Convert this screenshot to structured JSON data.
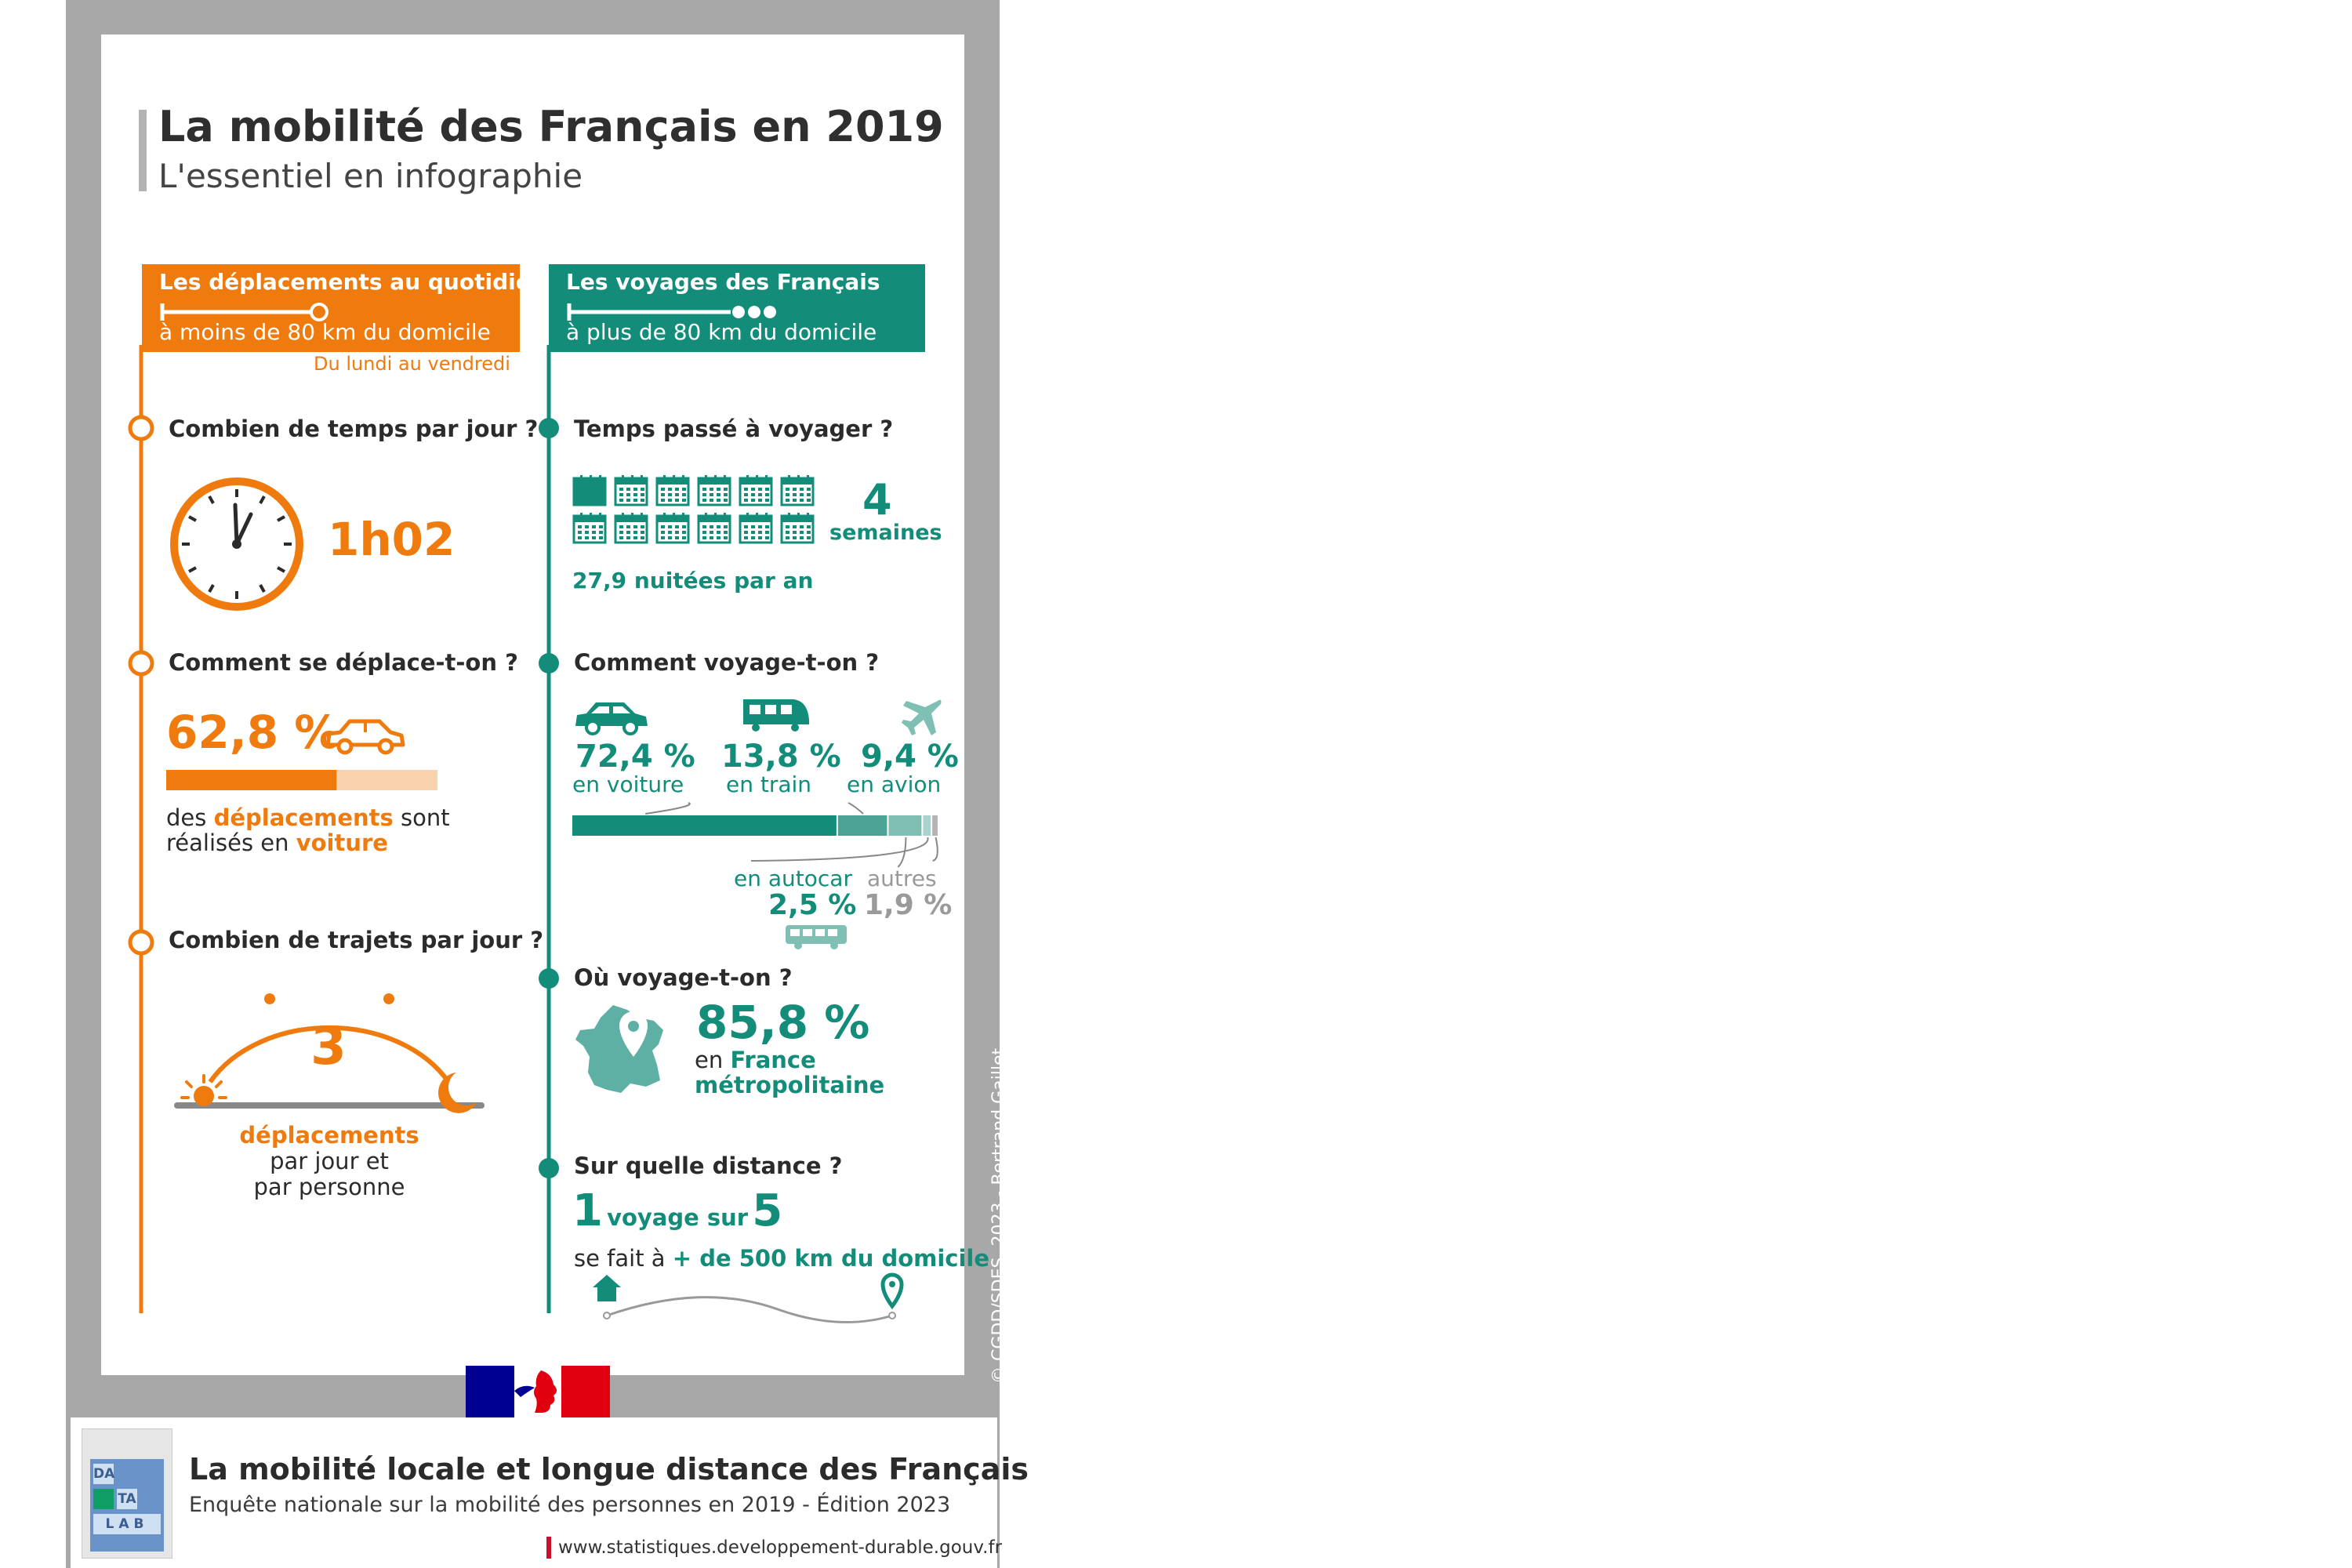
{
  "header": {
    "title": "La mobilité des Français en 2019",
    "subtitle": "L'essentiel en infographie"
  },
  "left": {
    "header_title": "Les déplacements au quotidien",
    "header_sub": "à moins de 80 km du domicile",
    "note": "Du lundi au vendredi",
    "q1": {
      "label": "Combien de temps par jour ?",
      "value": "1h02",
      "icon": "clock-icon"
    },
    "q2": {
      "label": "Comment se déplace-t-on ?",
      "value": "62,8 %",
      "bar_fraction": 0.628,
      "text_pre": "des ",
      "text_b1": "déplacements",
      "text_mid": " sont",
      "text_line2_pre": "réalisés en ",
      "text_b2": "voiture",
      "icon": "car-icon"
    },
    "q3": {
      "label": "Combien de trajets par jour ?",
      "value": "3",
      "line1": "déplacements",
      "line2": "par jour et",
      "line3": "par personne",
      "icons": [
        "sun-icon",
        "moon-icon"
      ]
    }
  },
  "right": {
    "header_title": "Les voyages des Français",
    "header_sub": "à plus de 80 km du domicile",
    "q1": {
      "label": "Temps passé à voyager ?",
      "value": "4",
      "unit": "semaines",
      "nights": "27,9 nuitées par an",
      "icon": "calendar-icon"
    },
    "q2": {
      "label": "Comment voyage-t-on ?",
      "modes": [
        {
          "value": "72,4 %",
          "label": "en voiture",
          "share": 72.4,
          "icon": "car-icon",
          "color": "#138c7a"
        },
        {
          "value": "13,8 %",
          "label": "en train",
          "share": 13.8,
          "icon": "train-icon",
          "color": "#4aa395"
        },
        {
          "value": "9,4 %",
          "label": "en avion",
          "share": 9.4,
          "icon": "plane-icon",
          "color": "#7fbfb4"
        },
        {
          "value": "2,5 %",
          "label": "en autocar",
          "share": 2.5,
          "icon": "bus-icon",
          "color": "#a9d3cc"
        },
        {
          "value": "1,9 %",
          "label": "autres",
          "share": 1.9,
          "color": "#b5b5b5"
        }
      ]
    },
    "q3": {
      "label": "Où voyage-t-on ?",
      "value": "85,8 %",
      "text_pre": "en ",
      "text_b1": "France",
      "text_b2": "métropolitaine",
      "icon": "france-map-icon"
    },
    "q4": {
      "label": "Sur quelle distance ?",
      "n1": "1",
      "mid": "voyage sur",
      "n2": "5",
      "text_pre": "se fait à ",
      "text_b": "+ de 500 km du domicile",
      "icons": [
        "house-icon",
        "location-pin-icon"
      ]
    }
  },
  "credit": "© CGDD/SDES, 2023 - Bertrand Gaillet",
  "footer": {
    "title": "La mobilité locale et longue distance des Français",
    "subtitle": "Enquête nationale sur la mobilité des personnes en 2019 - Édition 2023",
    "url": "www.statistiques.developpement-durable.gouv.fr",
    "datalab": [
      "DA",
      "TA",
      "LAB"
    ]
  },
  "colors": {
    "orange": "#ef7b0e",
    "teal": "#138c7a",
    "frame": "#a8a8a8"
  }
}
